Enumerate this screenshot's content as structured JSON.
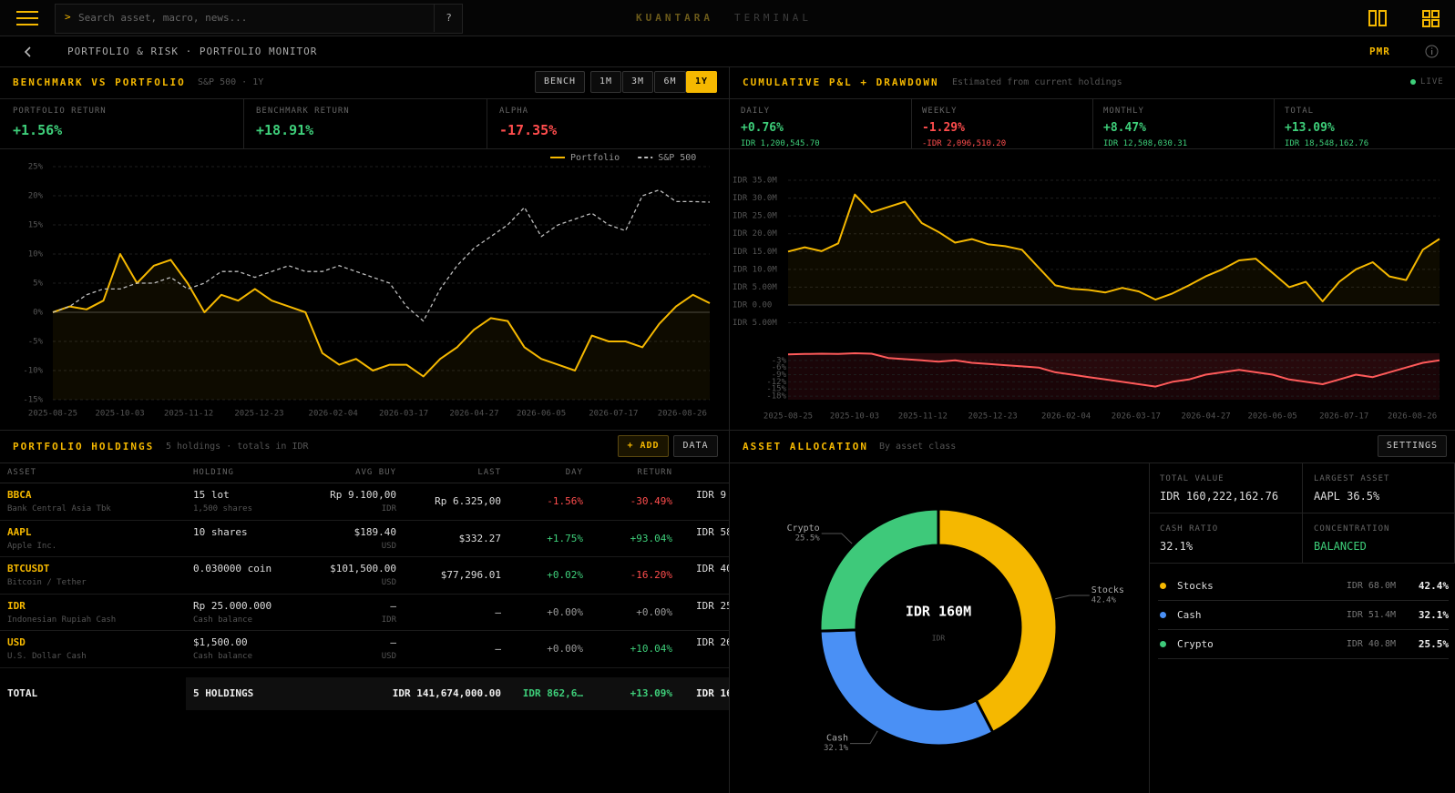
{
  "topbar": {
    "search_placeholder": "Search asset, macro, news...",
    "help": "?",
    "brand": "KUANTARA",
    "brand_suffix": "TERMINAL"
  },
  "breadcrumb": {
    "path": "PORTFOLIO & RISK · PORTFOLIO MONITOR",
    "code": "PMR"
  },
  "benchmark_panel": {
    "title": "BENCHMARK VS PORTFOLIO",
    "subtitle": "S&P 500 · 1Y",
    "buttons": [
      "BENCH",
      "1M",
      "3M",
      "6M",
      "1Y"
    ],
    "active": "1Y",
    "stats": [
      {
        "label": "PORTFOLIO RETURN",
        "value": "+1.56%"
      },
      {
        "label": "BENCHMARK RETURN",
        "value": "+18.91%"
      },
      {
        "label": "ALPHA",
        "value": "-17.35%"
      }
    ]
  },
  "pnl_panel": {
    "title": "CUMULATIVE P&L + DRAWDOWN",
    "subtitle": "Estimated from current holdings",
    "live": "LIVE",
    "stats": [
      {
        "label": "DAILY",
        "value": "+0.76%",
        "amount": "IDR 1,200,545.70"
      },
      {
        "label": "WEEKLY",
        "value": "-1.29%",
        "amount": "-IDR 2,096,510.20"
      },
      {
        "label": "MONTHLY",
        "value": "+8.47%",
        "amount": "IDR 12,508,030.31"
      },
      {
        "label": "TOTAL",
        "value": "+13.09%",
        "amount": "IDR 18,548,162.76"
      }
    ]
  },
  "holdings": {
    "title": "PORTFOLIO HOLDINGS",
    "subtitle": "5 holdings · totals in IDR",
    "buttons": [
      "+ ADD",
      "DATA"
    ],
    "columns": [
      "ASSET",
      "HOLDING",
      "AVG BUY",
      "LAST",
      "DAY",
      "RETURN"
    ],
    "rows": [
      {
        "symbol": "BBCA",
        "name": "Bank Central Asia Tbk",
        "holding": "15 lot",
        "holding_sub": "1,500 shares",
        "avg_buy": "Rp 9.100,00",
        "avg_buy_sub": "IDR",
        "last": "Rp 6.325,00",
        "day": "-1.56%",
        "return": "-30.49%",
        "value": "IDR 9"
      },
      {
        "symbol": "AAPL",
        "name": "Apple Inc.",
        "holding": "10 shares",
        "avg_buy": "$189.40",
        "avg_buy_sub": "USD",
        "last": "$332.27",
        "day": "+1.75%",
        "return": "+93.04%",
        "value": "IDR 58"
      },
      {
        "symbol": "BTCUSDT",
        "name": "Bitcoin / Tether",
        "holding": "0.030000 coin",
        "avg_buy": "$101,500.00",
        "avg_buy_sub": "USD",
        "last": "$77,296.01",
        "day": "+0.02%",
        "return": "-16.20%",
        "value": "IDR 40"
      },
      {
        "symbol": "IDR",
        "name": "Indonesian Rupiah Cash",
        "holding": "Rp 25.000.000",
        "holding_sub": "Cash balance",
        "avg_buy": "—",
        "avg_buy_sub": "IDR",
        "last": "—",
        "day": "+0.00%",
        "return": "+0.00%",
        "value": "IDR 25"
      },
      {
        "symbol": "USD",
        "name": "U.S. Dollar Cash",
        "holding": "$1,500.00",
        "holding_sub": "Cash balance",
        "avg_buy": "—",
        "avg_buy_sub": "USD",
        "last": "—",
        "day": "+0.00%",
        "return": "+10.04%",
        "value": "IDR 26"
      }
    ],
    "total": {
      "label": "TOTAL",
      "holding": "5 HOLDINGS",
      "last": "IDR 141,674,000.00",
      "day": "IDR 862,6…",
      "return": "+13.09%",
      "value": "IDR 16"
    }
  },
  "allocation_panel": {
    "title": "ASSET ALLOCATION",
    "subtitle": "By asset class",
    "button": "SETTINGS",
    "center_value": "IDR 160M",
    "center_unit": "IDR",
    "stats": [
      {
        "label": "TOTAL VALUE",
        "value": "IDR 160,222,162.76"
      },
      {
        "label": "LARGEST ASSET",
        "value": "AAPL 36.5%"
      },
      {
        "label": "CASH RATIO",
        "value": "32.1%"
      },
      {
        "label": "CONCENTRATION",
        "value": "BALANCED",
        "color": "#3ecf7a"
      }
    ],
    "amounts": [
      "IDR 68.0M",
      "IDR 51.4M",
      "IDR 40.8M"
    ]
  },
  "chart_data": [
    {
      "type": "line",
      "xlim": [
        "2025-08-25",
        "2026-09-11"
      ],
      "xticks": [
        "2025-08-25",
        "2025-10-03",
        "2025-11-12",
        "2025-12-23",
        "2026-02-04",
        "2026-03-17",
        "2026-04-27",
        "2026-06-05",
        "2026-07-17",
        "2026-08-26"
      ],
      "ylim": [
        -15,
        25
      ],
      "yticks": [
        {
          "value": 25,
          "label": "25%"
        },
        {
          "value": 20,
          "label": "20%"
        },
        {
          "value": 15,
          "label": "15%"
        },
        {
          "value": 10,
          "label": "10%"
        },
        {
          "value": 5,
          "label": "5%"
        },
        {
          "value": 0,
          "label": "0%"
        },
        {
          "value": -5,
          "label": "-5%"
        },
        {
          "value": -10,
          "label": "-10%"
        },
        {
          "value": -15,
          "label": "-15%"
        }
      ],
      "grid": true,
      "legend": "top-right",
      "series": [
        {
          "name": "Portfolio",
          "color": "#f5b800",
          "area": true,
          "values": [
            0,
            1,
            0.5,
            2,
            10,
            5,
            8,
            9,
            5,
            0,
            3,
            2,
            4,
            2,
            1,
            0,
            -7,
            -9,
            -8,
            -10,
            -9,
            -9,
            -11,
            -8,
            -6,
            -3,
            -1,
            -1.5,
            -6,
            -8,
            -9,
            -10,
            -4,
            -5,
            -5,
            -6,
            -2,
            1,
            3,
            1.56
          ]
        },
        {
          "name": "S&P 500",
          "color": "#bdbdbd",
          "dashed": true,
          "values": [
            0,
            1,
            3,
            4,
            4,
            5,
            5,
            6,
            4,
            5,
            7,
            7,
            6,
            7,
            8,
            7,
            7,
            8,
            7,
            6,
            5,
            1,
            -1.5,
            4,
            8,
            11,
            13,
            15,
            18,
            13,
            15,
            16,
            17,
            15,
            14,
            20,
            21,
            19,
            19,
            18.91
          ]
        }
      ]
    },
    {
      "type": "line",
      "xlim": [
        "2025-08-25",
        "2026-09-11"
      ],
      "ylim": [
        -5000000,
        35000000
      ],
      "yticks": [
        {
          "value": 35000000,
          "label": "IDR 35.0M"
        },
        {
          "value": 30000000,
          "label": "IDR 30.0M"
        },
        {
          "value": 25000000,
          "label": "IDR 25.0M"
        },
        {
          "value": 20000000,
          "label": "IDR 20.0M"
        },
        {
          "value": 15000000,
          "label": "IDR 15.0M"
        },
        {
          "value": 10000000,
          "label": "IDR 10.0M"
        },
        {
          "value": 5000000,
          "label": "IDR 5.00M"
        },
        {
          "value": 0,
          "label": "IDR 0.00"
        },
        {
          "value": -5000000,
          "label": "IDR 5.00M"
        }
      ],
      "grid": true,
      "series": [
        {
          "name": "Cumulative P&L",
          "color": "#f5b800",
          "area": true,
          "values": [
            15000000,
            16200000,
            15100000,
            17300000,
            31000000,
            26000000,
            27500000,
            29000000,
            23000000,
            20500000,
            17500000,
            18500000,
            17000000,
            16500000,
            15500000,
            10500000,
            5500000,
            4500000,
            4200000,
            3500000,
            4800000,
            3800000,
            1500000,
            3200000,
            5500000,
            8000000,
            10000000,
            12500000,
            13000000,
            9000000,
            5000000,
            6500000,
            1000000,
            6500000,
            10000000,
            12000000,
            8000000,
            7000000,
            15500000,
            18548162.76
          ]
        }
      ]
    },
    {
      "type": "line",
      "xlim": [
        "2025-08-25",
        "2026-09-11"
      ],
      "xticks": [
        "2025-08-25",
        "2025-10-03",
        "2025-11-12",
        "2025-12-23",
        "2026-02-04",
        "2026-03-17",
        "2026-04-27",
        "2026-06-05",
        "2026-07-17",
        "2026-08-26"
      ],
      "ylim": [
        -19.5,
        0
      ],
      "yticks": [
        {
          "value": -3,
          "label": "-3%"
        },
        {
          "value": -6,
          "label": "-6%"
        },
        {
          "value": -9,
          "label": "-9%"
        },
        {
          "value": -12,
          "label": "-12%"
        },
        {
          "value": -15,
          "label": "-15%"
        },
        {
          "value": -18,
          "label": "-18%"
        }
      ],
      "grid": true,
      "series": [
        {
          "name": "Drawdown",
          "color": "#ff5a5a",
          "area": true,
          "values": [
            -0.5,
            -0.3,
            -0.2,
            -0.3,
            0,
            -0.2,
            -2,
            -2.5,
            -3,
            -3.5,
            -3,
            -4,
            -4.5,
            -5,
            -5.5,
            -6,
            -8,
            -9,
            -10,
            -11,
            -12,
            -13,
            -14,
            -12,
            -11,
            -9,
            -8,
            -7,
            -8,
            -9,
            -11,
            -12,
            -13,
            -11,
            -9,
            -10,
            -8,
            -6,
            -4,
            -3
          ]
        }
      ]
    },
    {
      "type": "pie",
      "donut": true,
      "categories": [
        "Stocks",
        "Cash",
        "Crypto"
      ],
      "values": [
        42.4,
        32.1,
        25.5
      ],
      "value_labels": [
        "42.4%",
        "32.1%",
        "25.5%"
      ],
      "colors": [
        "#f5b800",
        "#4a90f5",
        "#3ec97a"
      ]
    }
  ]
}
